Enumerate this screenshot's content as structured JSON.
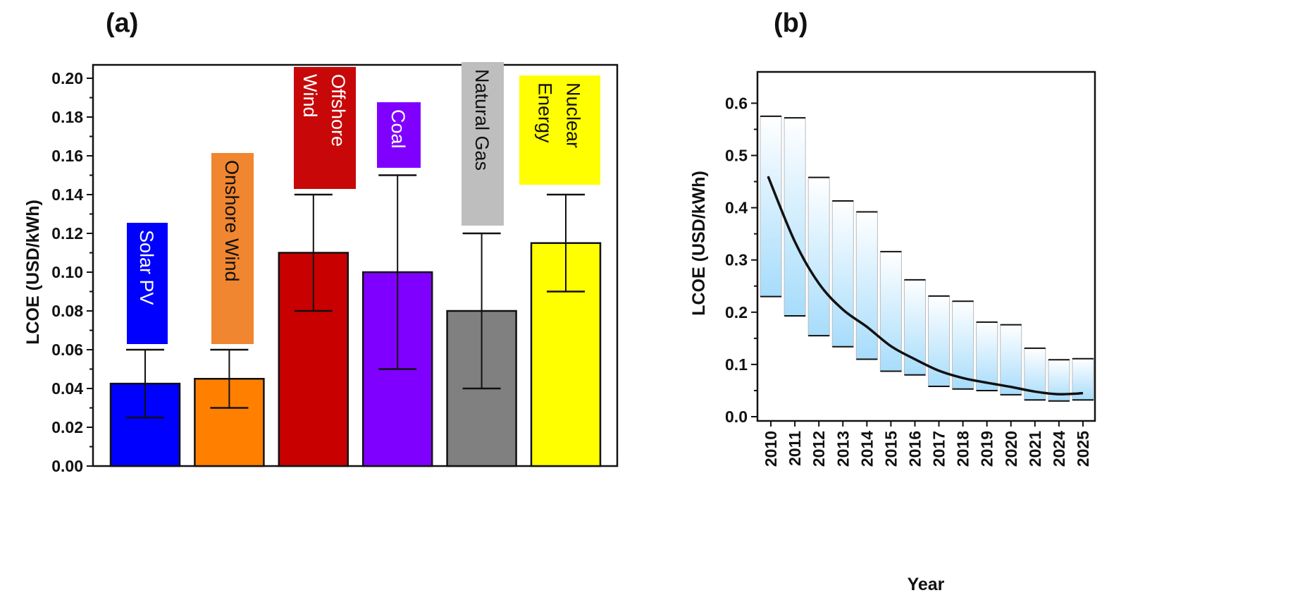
{
  "chart_data": [
    {
      "panel_label": "(a)",
      "type": "bar",
      "ylabel": "LCOE (USD/kWh)",
      "ylim": [
        0,
        0.21
      ],
      "yticks": [
        "0.00",
        "0.02",
        "0.04",
        "0.06",
        "0.08",
        "0.10",
        "0.12",
        "0.14",
        "0.16",
        "0.18",
        "0.20"
      ],
      "categories": [
        {
          "label": "Solar PV",
          "lines": [
            "Solar PV"
          ],
          "value": 0.0425,
          "err_low": 0.025,
          "err_high": 0.06,
          "bar_color": "#0000ff",
          "box_color": "#0000ff",
          "text_color": "#ffffff"
        },
        {
          "label": "Onshore Wind",
          "lines": [
            "Onshore Wind"
          ],
          "value": 0.045,
          "err_low": 0.03,
          "err_high": 0.06,
          "bar_color": "#ff8000",
          "box_color": "#f0862f",
          "text_color": "#111111"
        },
        {
          "label": "Offshore Wind",
          "lines": [
            "Offshore",
            "Wind"
          ],
          "value": 0.11,
          "err_low": 0.08,
          "err_high": 0.14,
          "bar_color": "#c80000",
          "box_color": "#c80808",
          "text_color": "#ffffff"
        },
        {
          "label": "Coal",
          "lines": [
            "Coal"
          ],
          "value": 0.1,
          "err_low": 0.05,
          "err_high": 0.15,
          "bar_color": "#8000ff",
          "box_color": "#8000ff",
          "text_color": "#ffffff"
        },
        {
          "label": "Natural Gas",
          "lines": [
            "Natural Gas"
          ],
          "value": 0.08,
          "err_low": 0.04,
          "err_high": 0.12,
          "bar_color": "#808080",
          "box_color": "#bebebe",
          "text_color": "#111111"
        },
        {
          "label": "Nuclear Energy",
          "lines": [
            "Nuclear",
            "Energy"
          ],
          "value": 0.115,
          "err_low": 0.09,
          "err_high": 0.14,
          "bar_color": "#ffff00",
          "box_color": "#ffff00",
          "text_color": "#111111"
        }
      ]
    },
    {
      "panel_label": "(b)",
      "type": "floating-bar+line",
      "xlabel": "Year",
      "ylabel": "LCOE (USD/kWh)",
      "ylim": [
        0,
        0.65
      ],
      "yticks": [
        "0.0",
        "0.1",
        "0.2",
        "0.3",
        "0.4",
        "0.5",
        "0.6"
      ],
      "fill_gradient": [
        "#ffffff",
        "#a6dcfb"
      ],
      "categories": [
        "2010",
        "2011",
        "2012",
        "2013",
        "2014",
        "2015",
        "2016",
        "2017",
        "2018",
        "2019",
        "2020",
        "2021",
        "2024",
        "2025"
      ],
      "range_high": [
        0.575,
        0.572,
        0.458,
        0.413,
        0.392,
        0.316,
        0.262,
        0.231,
        0.221,
        0.181,
        0.176,
        0.131,
        0.109,
        0.111
      ],
      "range_low": [
        0.23,
        0.193,
        0.155,
        0.134,
        0.11,
        0.087,
        0.08,
        0.058,
        0.053,
        0.05,
        0.042,
        0.032,
        0.03,
        0.032
      ],
      "trend": [
        0.46,
        0.335,
        0.255,
        0.205,
        0.172,
        0.135,
        0.11,
        0.088,
        0.074,
        0.065,
        0.057,
        0.048,
        0.043,
        0.045
      ]
    }
  ]
}
